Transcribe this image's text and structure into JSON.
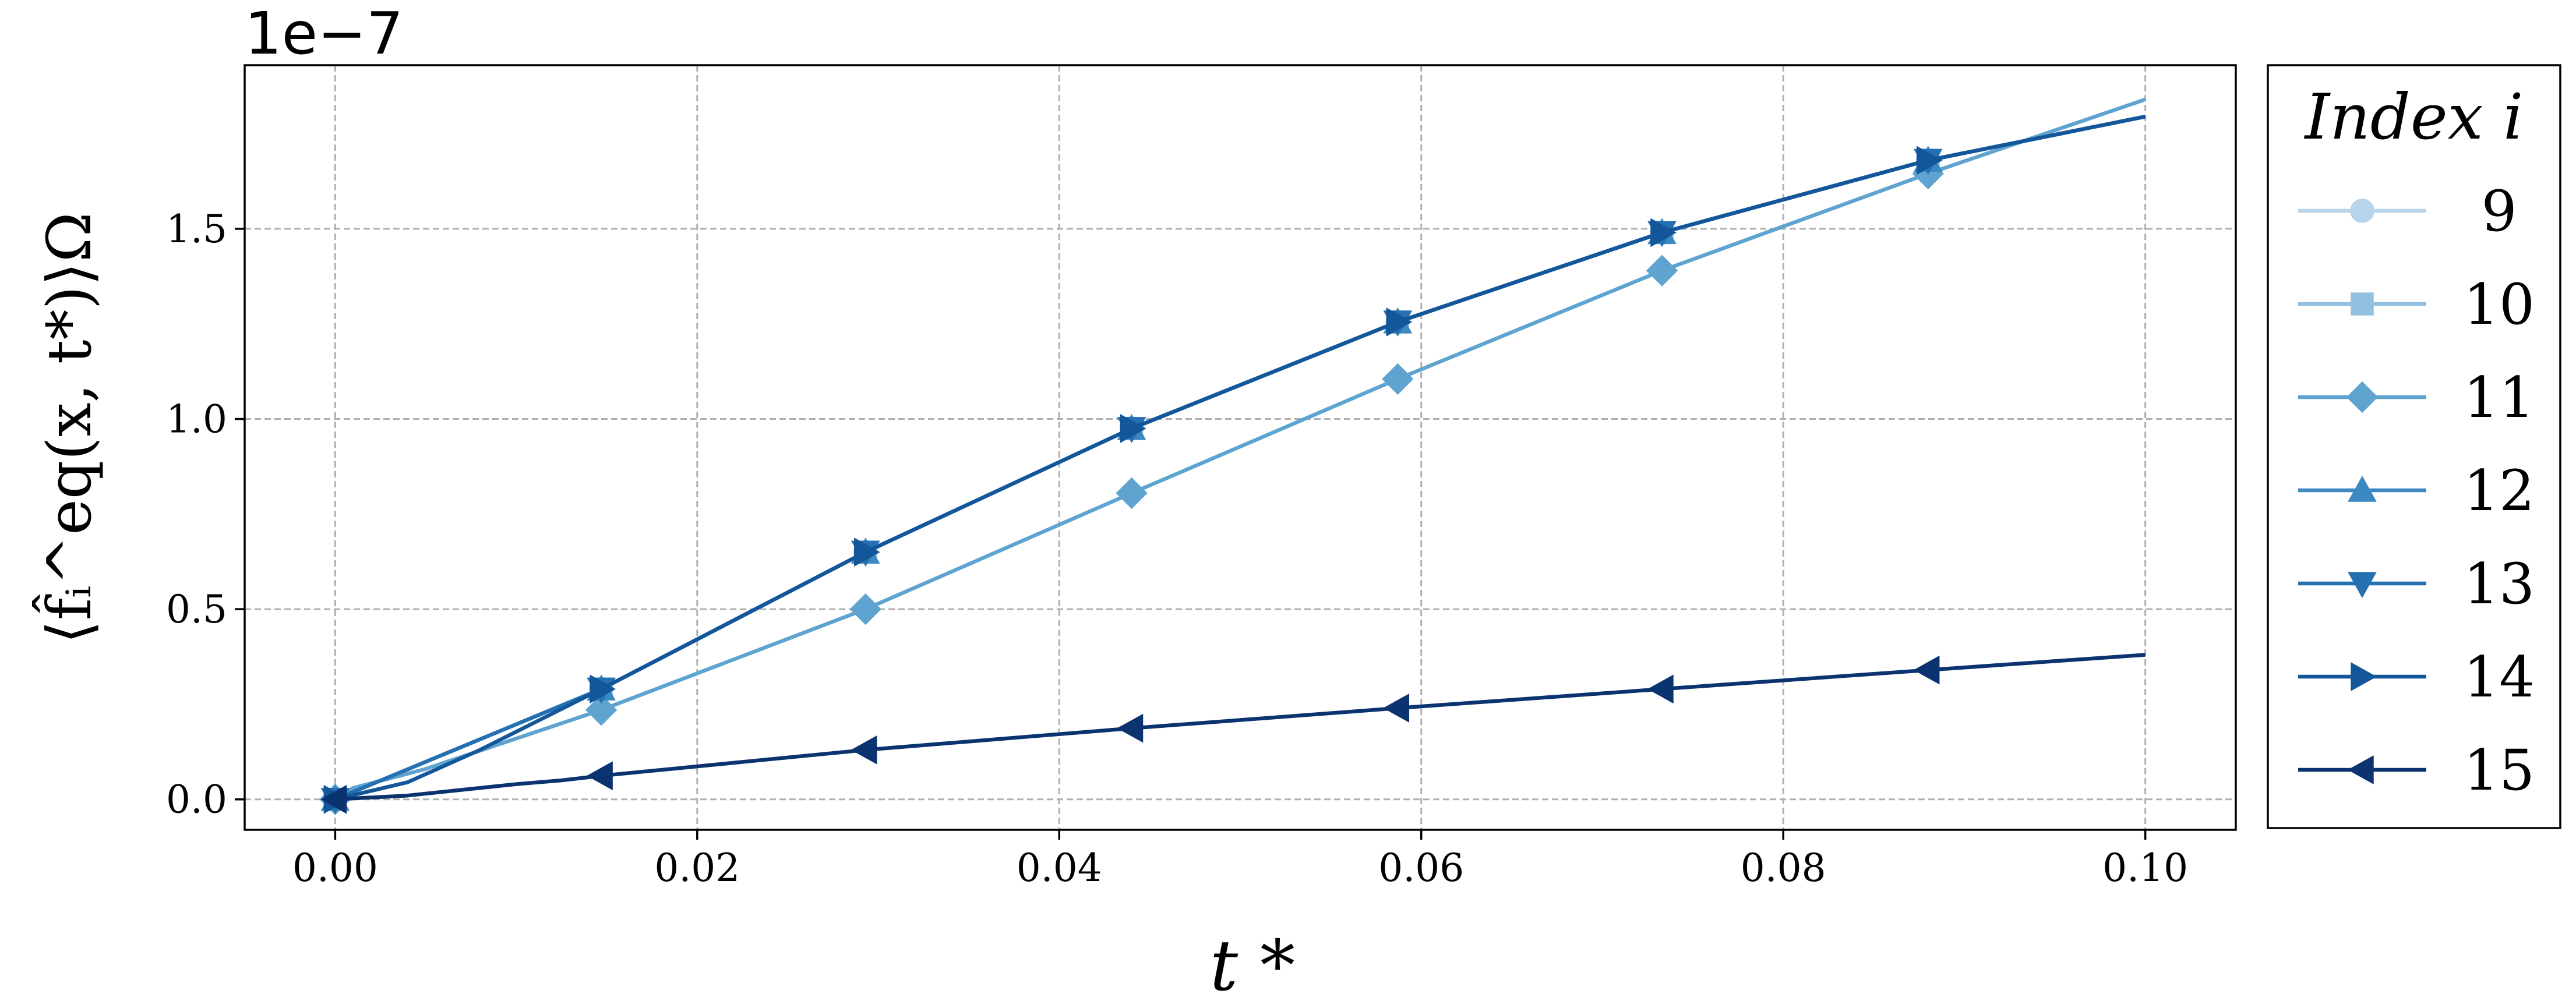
{
  "chart_data": {
    "type": "line",
    "xlabel": "t *",
    "ylabel": "⟨f̂ᵢ^eq(x, t*)⟩Ω",
    "y_offset_label": "1e−7",
    "xlim": [
      -0.005,
      0.105
    ],
    "ylim": [
      -0.08,
      1.93
    ],
    "x_ticks": [
      0.0,
      0.02,
      0.04,
      0.06,
      0.08,
      0.1
    ],
    "x_tick_labels": [
      "0.00",
      "0.02",
      "0.04",
      "0.06",
      "0.08",
      "0.10"
    ],
    "y_ticks": [
      0.0,
      0.5,
      1.0,
      1.5
    ],
    "y_tick_labels": [
      "0.0",
      "0.5",
      "1.0",
      "1.5"
    ],
    "grid": true,
    "legend": {
      "title": "Index i",
      "placement": "outside-right"
    },
    "series": [
      {
        "name": "9",
        "color": "#b8d4ea",
        "marker": "circle",
        "marker_x": [
          0.0,
          0.0147,
          0.0293,
          0.044,
          0.0587,
          0.0733,
          0.088
        ],
        "x": [
          0.0,
          0.0147,
          0.0293,
          0.044,
          0.0587,
          0.0733,
          0.088,
          0.1
        ],
        "y": [
          0.0,
          0.29,
          0.65,
          0.975,
          1.255,
          1.49,
          1.68,
          1.795
        ]
      },
      {
        "name": "10",
        "color": "#93c0e0",
        "marker": "square",
        "marker_x": [
          0.0,
          0.0147,
          0.0293,
          0.044,
          0.0587,
          0.0733,
          0.088
        ],
        "x": [
          0.0,
          0.0147,
          0.0293,
          0.044,
          0.0587,
          0.0733,
          0.088,
          0.1
        ],
        "y": [
          0.0,
          0.29,
          0.65,
          0.975,
          1.255,
          1.49,
          1.68,
          1.795
        ]
      },
      {
        "name": "11",
        "color": "#5fa4d0",
        "marker": "diamond",
        "marker_x": [
          0.0,
          0.0147,
          0.0293,
          0.044,
          0.0587,
          0.0733,
          0.088
        ],
        "x": [
          0.0,
          0.001,
          0.005,
          0.0147,
          0.0293,
          0.044,
          0.0587,
          0.0733,
          0.088,
          0.1
        ],
        "y": [
          0.0,
          0.03,
          0.08,
          0.235,
          0.5,
          0.805,
          1.105,
          1.39,
          1.645,
          1.84
        ]
      },
      {
        "name": "12",
        "color": "#3c88c1",
        "marker": "triangle-up",
        "marker_x": [
          0.0,
          0.0147,
          0.0293,
          0.044,
          0.0587,
          0.0733,
          0.088
        ],
        "x": [
          0.0,
          0.0147,
          0.0293,
          0.044,
          0.0587,
          0.0733,
          0.088,
          0.1
        ],
        "y": [
          0.0,
          0.29,
          0.65,
          0.975,
          1.255,
          1.49,
          1.68,
          1.795
        ]
      },
      {
        "name": "13",
        "color": "#2470b1",
        "marker": "triangle-down",
        "marker_x": [
          0.0,
          0.0147,
          0.0293,
          0.044,
          0.0587,
          0.0733,
          0.088
        ],
        "x": [
          0.0,
          0.0147,
          0.0293,
          0.044,
          0.0587,
          0.0733,
          0.088,
          0.1
        ],
        "y": [
          0.0,
          0.29,
          0.65,
          0.975,
          1.255,
          1.49,
          1.68,
          1.795
        ]
      },
      {
        "name": "14",
        "color": "#135699",
        "marker": "triangle-right",
        "marker_x": [
          0.0,
          0.0147,
          0.0293,
          0.044,
          0.0587,
          0.0733,
          0.088
        ],
        "x": [
          0.0,
          0.004,
          0.008,
          0.0147,
          0.0293,
          0.044,
          0.0587,
          0.0733,
          0.088,
          0.1
        ],
        "y": [
          0.0,
          0.045,
          0.13,
          0.29,
          0.65,
          0.975,
          1.255,
          1.49,
          1.68,
          1.795
        ]
      },
      {
        "name": "15",
        "color": "#0a3370",
        "marker": "triangle-left",
        "marker_x": [
          0.0,
          0.0147,
          0.0293,
          0.044,
          0.0587,
          0.0733,
          0.088
        ],
        "x": [
          0.0,
          0.004,
          0.007,
          0.01,
          0.0125,
          0.0147,
          0.0293,
          0.044,
          0.0587,
          0.0733,
          0.088,
          0.1
        ],
        "y": [
          0.0,
          0.01,
          0.025,
          0.04,
          0.05,
          0.062,
          0.13,
          0.187,
          0.24,
          0.29,
          0.34,
          0.38
        ]
      }
    ]
  }
}
